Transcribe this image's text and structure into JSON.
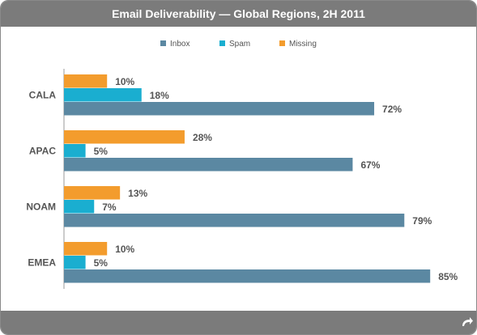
{
  "chart_data": {
    "type": "bar",
    "orientation": "horizontal",
    "title": "Email Deliverability — Global Regions, 2H 2011",
    "categories": [
      "CALA",
      "APAC",
      "NOAM",
      "EMEA"
    ],
    "series": [
      {
        "name": "Missing",
        "values": [
          10,
          28,
          13,
          10
        ],
        "labels": [
          "10%",
          "28%",
          "13%",
          "10%"
        ],
        "color": "#f39c2d"
      },
      {
        "name": "Spam",
        "values": [
          18,
          5,
          7,
          5
        ],
        "labels": [
          "18%",
          "5%",
          "7%",
          "5%"
        ],
        "color": "#1aaed0"
      },
      {
        "name": "Inbox",
        "values": [
          72,
          67,
          79,
          85
        ],
        "labels": [
          "72%",
          "67%",
          "79%",
          "85%"
        ],
        "color": "#5b88a2"
      }
    ],
    "legend": {
      "order": [
        "Inbox",
        "Spam",
        "Missing"
      ],
      "placement": "top-center"
    },
    "xlim": [
      0,
      100
    ],
    "grid": false
  },
  "controls": {
    "undo_icon": "undo-arrow-icon"
  }
}
